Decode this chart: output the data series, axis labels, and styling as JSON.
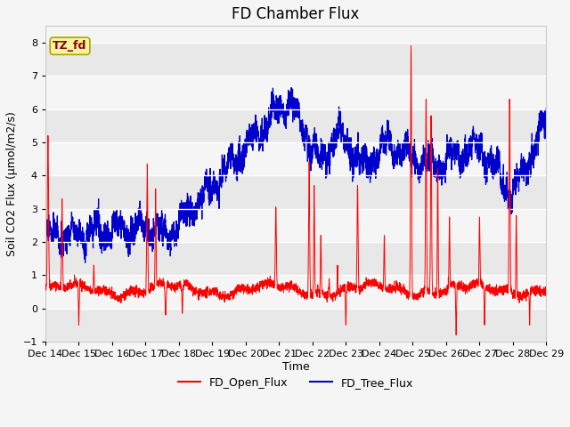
{
  "title": "FD Chamber Flux",
  "ylabel": "Soil CO2 Flux (μmol/m2/s)",
  "xlabel": "Time",
  "ylim": [
    -1.0,
    8.5
  ],
  "yticks": [
    -1.0,
    0.0,
    1.0,
    2.0,
    3.0,
    4.0,
    5.0,
    6.0,
    7.0,
    8.0
  ],
  "plot_bg": "#f5f5f5",
  "label_box_text": "TZ_fd",
  "label_box_facecolor": "#f5f5a0",
  "label_box_edgecolor": "#aaa800",
  "label_box_textcolor": "#8b0000",
  "open_flux_color": "#ff0000",
  "tree_flux_color": "#0000cc",
  "legend_labels": [
    "FD_Open_Flux",
    "FD_Tree_Flux"
  ],
  "n_points": 3600,
  "x_start": 14,
  "x_end": 29,
  "xtick_positions": [
    14,
    15,
    16,
    17,
    18,
    19,
    20,
    21,
    22,
    23,
    24,
    25,
    26,
    27,
    28,
    29
  ],
  "xtick_labels": [
    "Dec 14",
    "Dec 15",
    "Dec 16",
    "Dec 17",
    "Dec 18",
    "Dec 19",
    "Dec 20",
    "Dec 21",
    "Dec 22",
    "Dec 23",
    "Dec 24",
    "Dec 25",
    "Dec 26",
    "Dec 27",
    "Dec 28",
    "Dec 29"
  ],
  "title_fontsize": 12,
  "axis_fontsize": 9,
  "tick_fontsize": 8,
  "legend_fontsize": 9,
  "band_colors": [
    "#e8e8e8",
    "#f5f5f5"
  ],
  "band_edges": [
    -1.0,
    0.0,
    1.0,
    2.0,
    3.0,
    4.0,
    5.0,
    6.0,
    7.0,
    8.0
  ]
}
